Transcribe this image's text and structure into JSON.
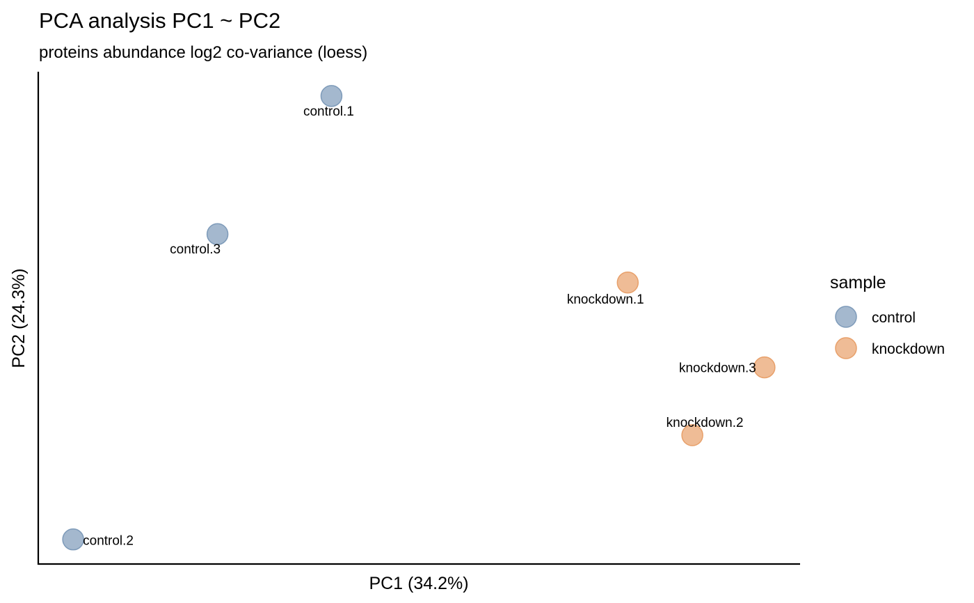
{
  "chart_data": {
    "type": "scatter",
    "title": "PCA analysis PC1 ~ PC2",
    "subtitle": "proteins abundance log2 co-variance (loess)",
    "xlabel": "PC1 (34.2%)",
    "ylabel": "PC2 (24.3%)",
    "xlim": [
      0,
      100
    ],
    "ylim": [
      0,
      100
    ],
    "grid": false,
    "legend_position": "right",
    "legend": {
      "title": "sample",
      "entries": [
        {
          "label": "control",
          "color": "#7D9AB9"
        },
        {
          "label": "knockdown",
          "color": "#E8A06A"
        }
      ]
    },
    "series": [
      {
        "name": "control",
        "color": "#7D9AB9",
        "points": [
          {
            "label": "control.1",
            "x": 38.5,
            "y": 96
          },
          {
            "label": "control.3",
            "x": 23.5,
            "y": 67.5
          },
          {
            "label": "control.2",
            "x": 4.5,
            "y": 4.5
          }
        ]
      },
      {
        "name": "knockdown",
        "color": "#E8A06A",
        "points": [
          {
            "label": "knockdown.1",
            "x": 77.5,
            "y": 57.5
          },
          {
            "label": "knockdown.3",
            "x": 95.5,
            "y": 40
          },
          {
            "label": "knockdown.2",
            "x": 86,
            "y": 26
          }
        ]
      }
    ]
  }
}
